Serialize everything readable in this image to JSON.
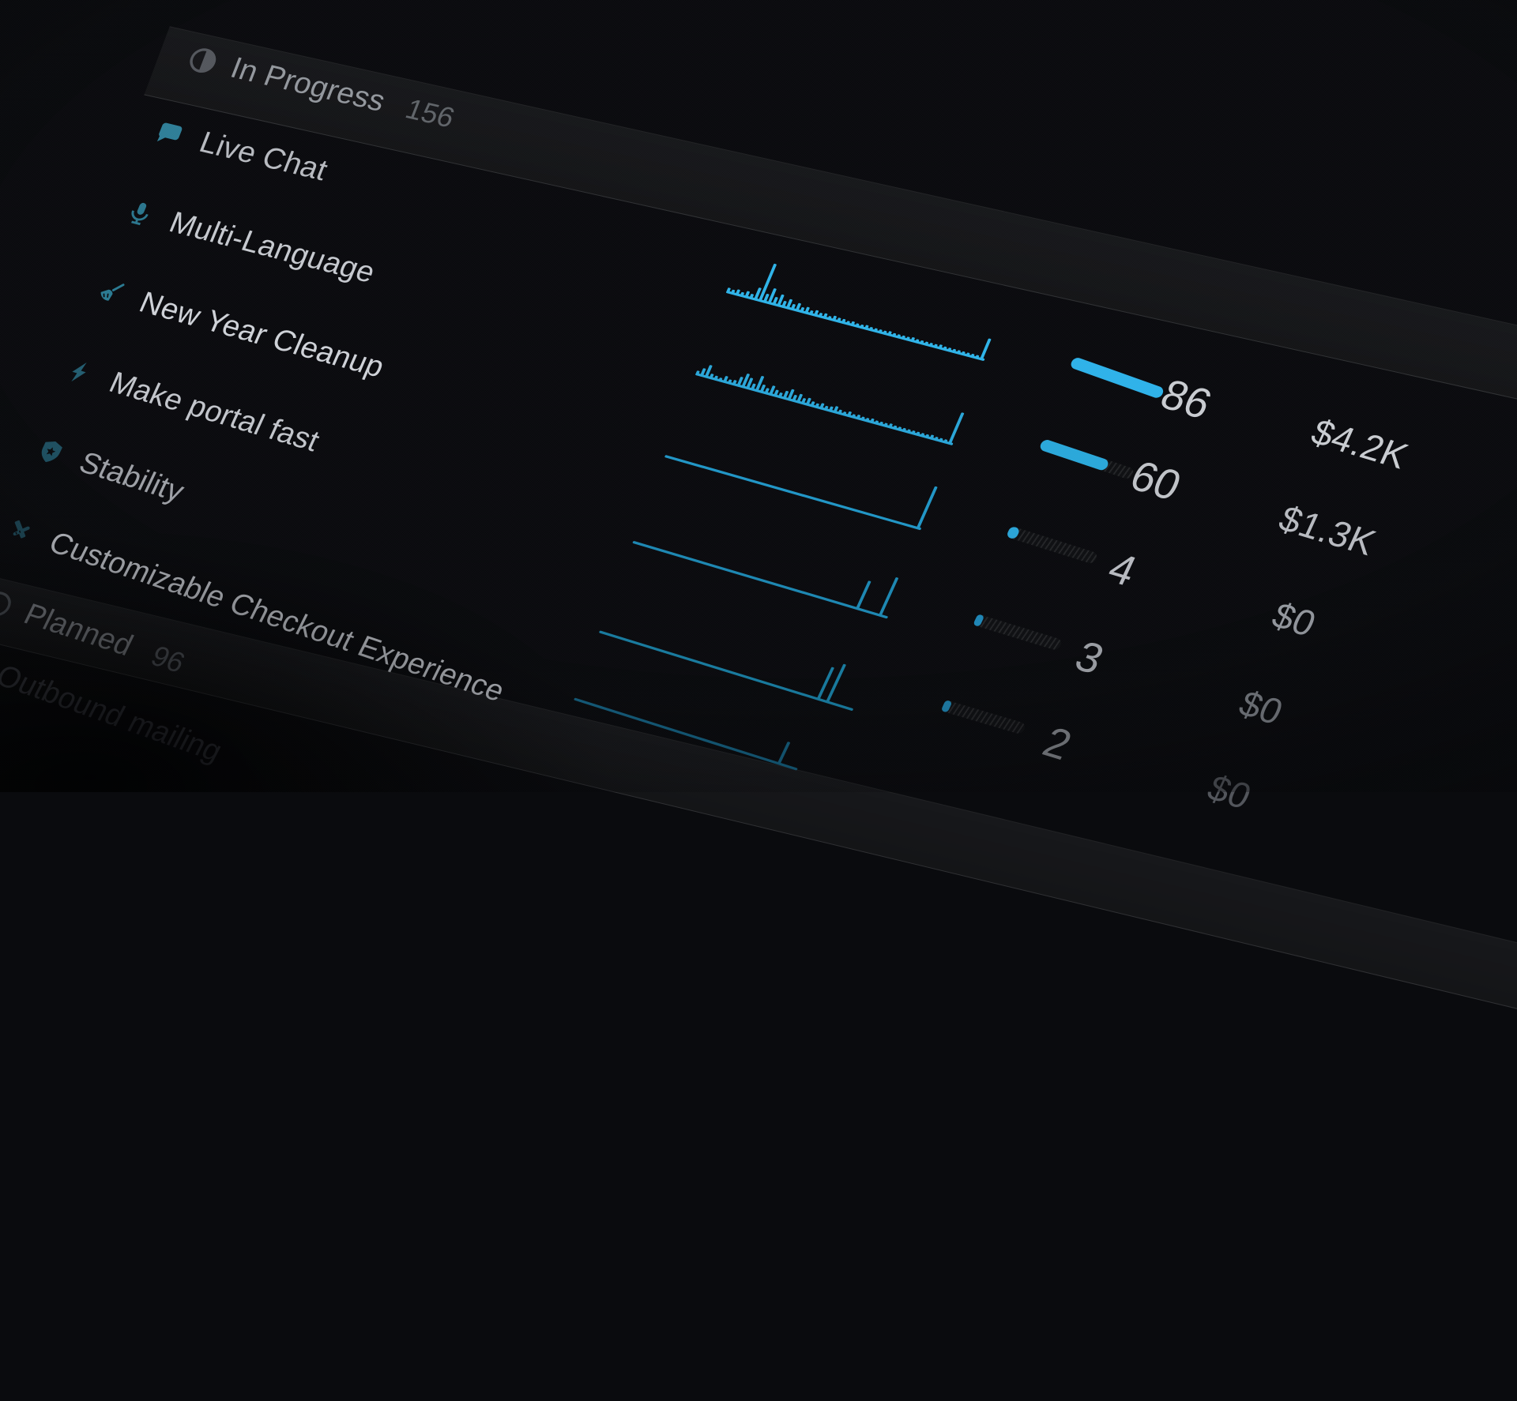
{
  "colors": {
    "background": "#0a0b0e",
    "accent_blue": "#2fb3e8",
    "band_background": "rgba(255,255,255,0.05)",
    "band_border": "rgba(255,255,255,0.10)"
  },
  "sections": [
    {
      "label": "In Progress",
      "count": "156",
      "icon": "progress-circle-icon",
      "label_color": "#93979d",
      "count_color": "#606469",
      "icon_color": "#54575d"
    },
    {
      "label": "Planned",
      "count": "96",
      "icon": "circle-outline-icon",
      "label_color": "#7e8288",
      "count_color": "#54585e",
      "icon_color": "#4a4e54"
    }
  ],
  "rows": [
    {
      "label": "Live Chat",
      "icon": "chat-bubble-icon",
      "icon_color": "#2f7e97",
      "label_color": "#b7bac0",
      "spark": {
        "color": "#2fb3e8",
        "line_width": 340,
        "bars": [
          4,
          3,
          5,
          3,
          6,
          4,
          14,
          48,
          9,
          18,
          8,
          13,
          6,
          10,
          5,
          8,
          4,
          6,
          3,
          5,
          3,
          4,
          2,
          4,
          3,
          3,
          2,
          3,
          2,
          2,
          3,
          2,
          2,
          2,
          2,
          3,
          2,
          2,
          2,
          2,
          3,
          2,
          2,
          2,
          2,
          2,
          3,
          2,
          2,
          2,
          2,
          2,
          2,
          2,
          2,
          26
        ]
      },
      "score": {
        "value": "86",
        "value_color": "#c9ccd1",
        "bar_color": "#2eb2e9",
        "fill": 124,
        "track": 0
      },
      "revenue": {
        "text": "$4.2K",
        "color": "#c9ccd1"
      }
    },
    {
      "label": "Multi-Language",
      "icon": "microphone-icon",
      "icon_color": "#2b768e",
      "label_color": "#c6c9cf",
      "spark": {
        "color": "#2aa6d8",
        "line_width": 340,
        "bars": [
          3,
          8,
          14,
          4,
          3,
          2,
          6,
          3,
          4,
          10,
          16,
          12,
          6,
          18,
          8,
          5,
          10,
          6,
          4,
          8,
          12,
          6,
          9,
          5,
          7,
          4,
          3,
          5,
          3,
          4,
          6,
          3,
          2,
          4,
          2,
          3,
          2,
          2,
          3,
          2,
          2,
          2,
          3,
          2,
          2,
          2,
          2,
          2,
          2,
          2,
          2,
          3,
          2,
          2,
          2,
          40
        ]
      },
      "score": {
        "value": "60",
        "value_color": "#c0c3c8",
        "bar_color": "#2aa8da",
        "fill": 90,
        "track": 124
      },
      "revenue": {
        "text": "$1.3K",
        "color": "#b7bac0"
      }
    },
    {
      "label": "New Year Cleanup",
      "icon": "broom-icon",
      "icon_color": "#2a7a92",
      "label_color": "#cfd2d8",
      "spark": {
        "color": "#2196c6",
        "line_width": 340,
        "bars": [
          0,
          0,
          0,
          0,
          0,
          0,
          0,
          0,
          0,
          0,
          0,
          0,
          0,
          0,
          0,
          0,
          0,
          0,
          0,
          0,
          0,
          0,
          0,
          0,
          0,
          0,
          0,
          0,
          0,
          0,
          0,
          0,
          0,
          0,
          0,
          0,
          0,
          0,
          0,
          0,
          0,
          0,
          0,
          0,
          0,
          0,
          0,
          0,
          0,
          0,
          0,
          0,
          0,
          0,
          0,
          55
        ]
      },
      "score": {
        "value": "4",
        "value_color": "#b7bac0",
        "bar_color": "#2aa4d6",
        "fill": 13,
        "track": 118
      },
      "revenue": {
        "text": "$0",
        "color": "#9599a0"
      }
    },
    {
      "label": "Make portal fast",
      "icon": "lightning-icon",
      "icon_color": "#235d70",
      "label_color": "#c2c5cb",
      "spark": {
        "color": "#1d87b2",
        "line_width": 340,
        "bars": [
          0,
          0,
          0,
          0,
          0,
          0,
          0,
          0,
          0,
          0,
          0,
          0,
          0,
          0,
          0,
          0,
          0,
          0,
          0,
          0,
          0,
          0,
          0,
          0,
          0,
          0,
          0,
          0,
          0,
          0,
          0,
          0,
          0,
          0,
          0,
          0,
          0,
          0,
          0,
          0,
          0,
          0,
          0,
          0,
          0,
          0,
          0,
          0,
          0,
          36,
          0,
          0,
          0,
          0,
          50,
          0
        ]
      },
      "score": {
        "value": "3",
        "value_color": "#9a9da3",
        "bar_color": "#1e86b6",
        "fill": 9,
        "track": 114
      },
      "revenue": {
        "text": "$0",
        "color": "#787c83"
      }
    },
    {
      "label": "Stability",
      "icon": "shield-icon",
      "icon_color": "#1e4f60",
      "label_color": "#9da0a6",
      "spark": {
        "color": "#187a9e",
        "line_width": 340,
        "bars": [
          0,
          0,
          0,
          0,
          0,
          0,
          0,
          0,
          0,
          0,
          0,
          0,
          0,
          0,
          0,
          0,
          0,
          0,
          0,
          0,
          0,
          0,
          0,
          0,
          0,
          0,
          0,
          0,
          0,
          0,
          0,
          0,
          0,
          0,
          0,
          0,
          0,
          0,
          0,
          0,
          0,
          0,
          0,
          0,
          0,
          0,
          0,
          0,
          42,
          0,
          50,
          0,
          0,
          0,
          0,
          0
        ]
      },
      "score": {
        "value": "2",
        "value_color": "#7b7e84",
        "bar_color": "#1d7ba6",
        "fill": 9,
        "track": 108
      },
      "revenue": {
        "text": "$0",
        "color": "#53565c"
      }
    },
    {
      "label": "Customizable Checkout Experience",
      "icon": "design-tools-icon",
      "icon_color": "#1c4452",
      "label_color": "#b4b7bd",
      "spark": {
        "color": "#145d7c",
        "line_width": 300,
        "bars": [
          0,
          0,
          0,
          0,
          0,
          0,
          0,
          0,
          0,
          0,
          0,
          0,
          0,
          0,
          0,
          0,
          0,
          0,
          0,
          0,
          0,
          0,
          0,
          0,
          0,
          0,
          0,
          0,
          0,
          0,
          0,
          0,
          0,
          0,
          0,
          0,
          0,
          0,
          0,
          0,
          0,
          0,
          0,
          0,
          0,
          28,
          0,
          0,
          0,
          0,
          0,
          0,
          0,
          0,
          0,
          0
        ]
      },
      "score": null,
      "revenue": null
    }
  ],
  "overflow_row": {
    "label": "Outbound mailing",
    "label_color": "#3f424a"
  }
}
